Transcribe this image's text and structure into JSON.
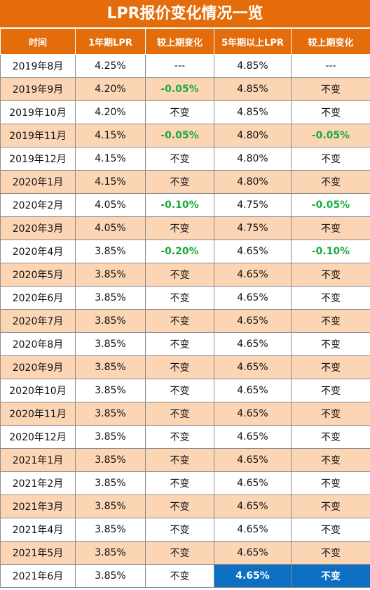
{
  "title": "LPR报价变化情况一览",
  "headers": [
    "时间",
    "1年期LPR",
    "较上期变化",
    "5年期以上LPR",
    "较上期变化"
  ],
  "rows": [
    {
      "month": "2019年8月",
      "lpr1y": "4.25%",
      "chg1y": "---",
      "lpr5y": "4.85%",
      "chg5y": "---"
    },
    {
      "month": "2019年9月",
      "lpr1y": "4.20%",
      "chg1y": "-0.05%",
      "lpr5y": "4.85%",
      "chg5y": "不变"
    },
    {
      "month": "2019年10月",
      "lpr1y": "4.20%",
      "chg1y": "不变",
      "lpr5y": "4.85%",
      "chg5y": "不变"
    },
    {
      "month": "2019年11月",
      "lpr1y": "4.15%",
      "chg1y": "-0.05%",
      "lpr5y": "4.80%",
      "chg5y": "-0.05%"
    },
    {
      "month": "2019年12月",
      "lpr1y": "4.15%",
      "chg1y": "不变",
      "lpr5y": "4.80%",
      "chg5y": "不变"
    },
    {
      "month": "2020年1月",
      "lpr1y": "4.15%",
      "chg1y": "不变",
      "lpr5y": "4.80%",
      "chg5y": "不变"
    },
    {
      "month": "2020年2月",
      "lpr1y": "4.05%",
      "chg1y": "-0.10%",
      "lpr5y": "4.75%",
      "chg5y": "-0.05%"
    },
    {
      "month": "2020年3月",
      "lpr1y": "4.05%",
      "chg1y": "不变",
      "lpr5y": "4.75%",
      "chg5y": "不变"
    },
    {
      "month": "2020年4月",
      "lpr1y": "3.85%",
      "chg1y": "-0.20%",
      "lpr5y": "4.65%",
      "chg5y": "-0.10%"
    },
    {
      "month": "2020年5月",
      "lpr1y": "3.85%",
      "chg1y": "不变",
      "lpr5y": "4.65%",
      "chg5y": "不变"
    },
    {
      "month": "2020年6月",
      "lpr1y": "3.85%",
      "chg1y": "不变",
      "lpr5y": "4.65%",
      "chg5y": "不变"
    },
    {
      "month": "2020年7月",
      "lpr1y": "3.85%",
      "chg1y": "不变",
      "lpr5y": "4.65%",
      "chg5y": "不变"
    },
    {
      "month": "2020年8月",
      "lpr1y": "3.85%",
      "chg1y": "不变",
      "lpr5y": "4.65%",
      "chg5y": "不变"
    },
    {
      "month": "2020年9月",
      "lpr1y": "3.85%",
      "chg1y": "不变",
      "lpr5y": "4.65%",
      "chg5y": "不变"
    },
    {
      "month": "2020年10月",
      "lpr1y": "3.85%",
      "chg1y": "不变",
      "lpr5y": "4.65%",
      "chg5y": "不变"
    },
    {
      "month": "2020年11月",
      "lpr1y": "3.85%",
      "chg1y": "不变",
      "lpr5y": "4.65%",
      "chg5y": "不变"
    },
    {
      "month": "2020年12月",
      "lpr1y": "3.85%",
      "chg1y": "不变",
      "lpr5y": "4.65%",
      "chg5y": "不变"
    },
    {
      "month": "2021年1月",
      "lpr1y": "3.85%",
      "chg1y": "不变",
      "lpr5y": "4.65%",
      "chg5y": "不变"
    },
    {
      "month": "2021年2月",
      "lpr1y": "3.85%",
      "chg1y": "不变",
      "lpr5y": "4.65%",
      "chg5y": "不变"
    },
    {
      "month": "2021年3月",
      "lpr1y": "3.85%",
      "chg1y": "不变",
      "lpr5y": "4.65%",
      "chg5y": "不变"
    },
    {
      "month": "2021年4月",
      "lpr1y": "3.85%",
      "chg1y": "不变",
      "lpr5y": "4.65%",
      "chg5y": "不变"
    },
    {
      "month": "2021年5月",
      "lpr1y": "3.85%",
      "chg1y": "不变",
      "lpr5y": "4.65%",
      "chg5y": "不变"
    },
    {
      "month": "2021年6月",
      "lpr1y": "3.85%",
      "chg1y": "不变",
      "lpr5y": "4.65%",
      "chg5y": "不变",
      "highlighted": true
    }
  ],
  "colors": {
    "header_bg": "#e46c0a",
    "alt_row_bg": "#fcd5b5",
    "decrease_text": "#1aab3c",
    "highlight_bg": "#0c6fc1"
  }
}
